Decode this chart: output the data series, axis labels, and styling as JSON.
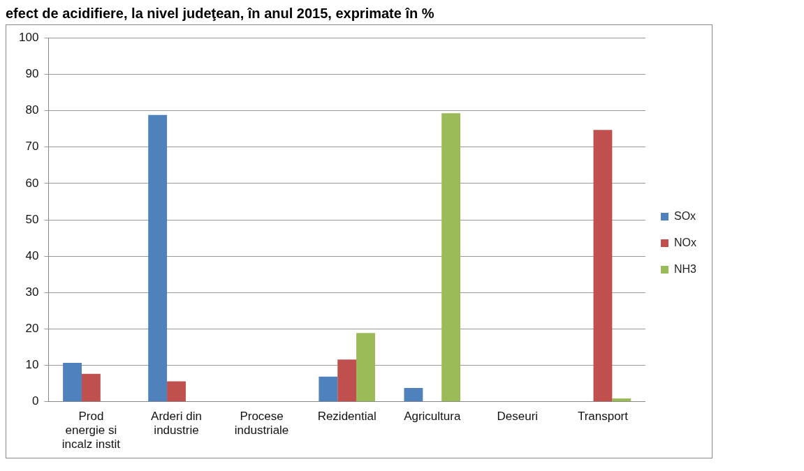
{
  "chart_data": {
    "type": "bar",
    "title": "efect de acidifiere, la nivel judeţean, în anul 2015, exprimate în %",
    "categories": [
      [
        "Prod",
        "energie si",
        "incalz instit"
      ],
      [
        "Arderi din",
        "industrie"
      ],
      [
        "Procese",
        "industriale"
      ],
      "Rezidential",
      "Agricultura",
      "Deseuri",
      "Transport"
    ],
    "series": [
      {
        "name": "SOx",
        "color": "#4f81bd",
        "values": [
          10.7,
          78.8,
          0,
          6.9,
          3.8,
          0,
          0
        ]
      },
      {
        "name": "NOx",
        "color": "#c0504d",
        "values": [
          7.7,
          5.6,
          0,
          11.6,
          null,
          0,
          74.7
        ]
      },
      {
        "name": "NH3",
        "color": "#9bbb59",
        "values": [
          null,
          0,
          0,
          18.9,
          79.3,
          0,
          0.9
        ]
      }
    ],
    "ylim": [
      0,
      100
    ],
    "yticks": [
      0,
      10,
      20,
      30,
      40,
      50,
      60,
      70,
      80,
      90,
      100
    ],
    "grid": "y",
    "legend": "right"
  }
}
